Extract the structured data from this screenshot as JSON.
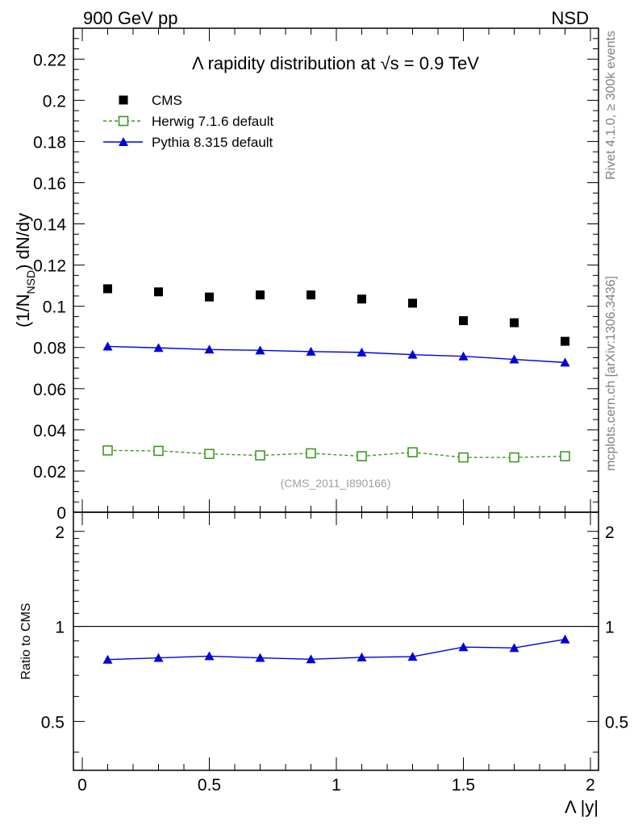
{
  "header": {
    "left": "900 GeV pp",
    "right": "NSD"
  },
  "side_labels": {
    "rivet": "Rivet 4.1.0, ≥ 300k events",
    "mcplots": "mcplots.cern.ch [arXiv:1306.3436]"
  },
  "chart_data": [
    {
      "type": "scatter",
      "panel": "main",
      "title": "Λ rapidity distribution at √s = 0.9 TeV",
      "ylabel": "(1/N_NSD) dN/dy",
      "xlabel": "",
      "watermark": "(CMS_2011_I890166)",
      "xlim": [
        0,
        2
      ],
      "ylim": [
        0,
        0.235
      ],
      "yticks": [
        "0",
        "0.02",
        "0.04",
        "0.06",
        "0.08",
        "0.1",
        "0.12",
        "0.14",
        "0.16",
        "0.18",
        "0.2",
        "0.22"
      ],
      "legend_position": "top-left",
      "x": [
        0.1,
        0.3,
        0.5,
        0.7,
        0.9,
        1.1,
        1.3,
        1.5,
        1.7,
        1.9
      ],
      "series": [
        {
          "name": "CMS",
          "style": "markers",
          "marker": "square-filled",
          "color": "#000000",
          "values": [
            0.1085,
            0.107,
            0.1045,
            0.1055,
            0.1055,
            0.1035,
            0.1015,
            0.093,
            0.092,
            0.083
          ]
        },
        {
          "name": "Herwig 7.1.6 default",
          "style": "dashed-line",
          "marker": "square-open",
          "color": "#3c9a1e",
          "values": [
            0.03,
            0.0298,
            0.0283,
            0.0276,
            0.0286,
            0.0272,
            0.0291,
            0.0266,
            0.0266,
            0.0272
          ]
        },
        {
          "name": "Pythia 8.315 default",
          "style": "solid-line",
          "marker": "triangle-filled",
          "color": "#0000d8",
          "values": [
            0.0805,
            0.0798,
            0.079,
            0.0786,
            0.078,
            0.0776,
            0.0765,
            0.0757,
            0.0742,
            0.0727
          ]
        }
      ]
    },
    {
      "type": "line",
      "panel": "ratio",
      "ylabel": "Ratio to CMS",
      "xlabel": "Λ |y|",
      "xlim": [
        0,
        2
      ],
      "ylim": [
        0.35,
        2.3
      ],
      "yticks": [
        "0.5",
        "1",
        "2"
      ],
      "xticks": [
        "0",
        "0.5",
        "1",
        "1.5",
        "2"
      ],
      "reference_line": 1,
      "x": [
        0.1,
        0.3,
        0.5,
        0.7,
        0.9,
        1.1,
        1.3,
        1.5,
        1.7,
        1.9
      ],
      "series": [
        {
          "name": "Pythia 8.315 default",
          "style": "solid-line",
          "marker": "triangle-filled",
          "color": "#0000d8",
          "values": [
            0.785,
            0.795,
            0.805,
            0.795,
            0.787,
            0.798,
            0.802,
            0.86,
            0.855,
            0.91
          ]
        }
      ]
    }
  ]
}
